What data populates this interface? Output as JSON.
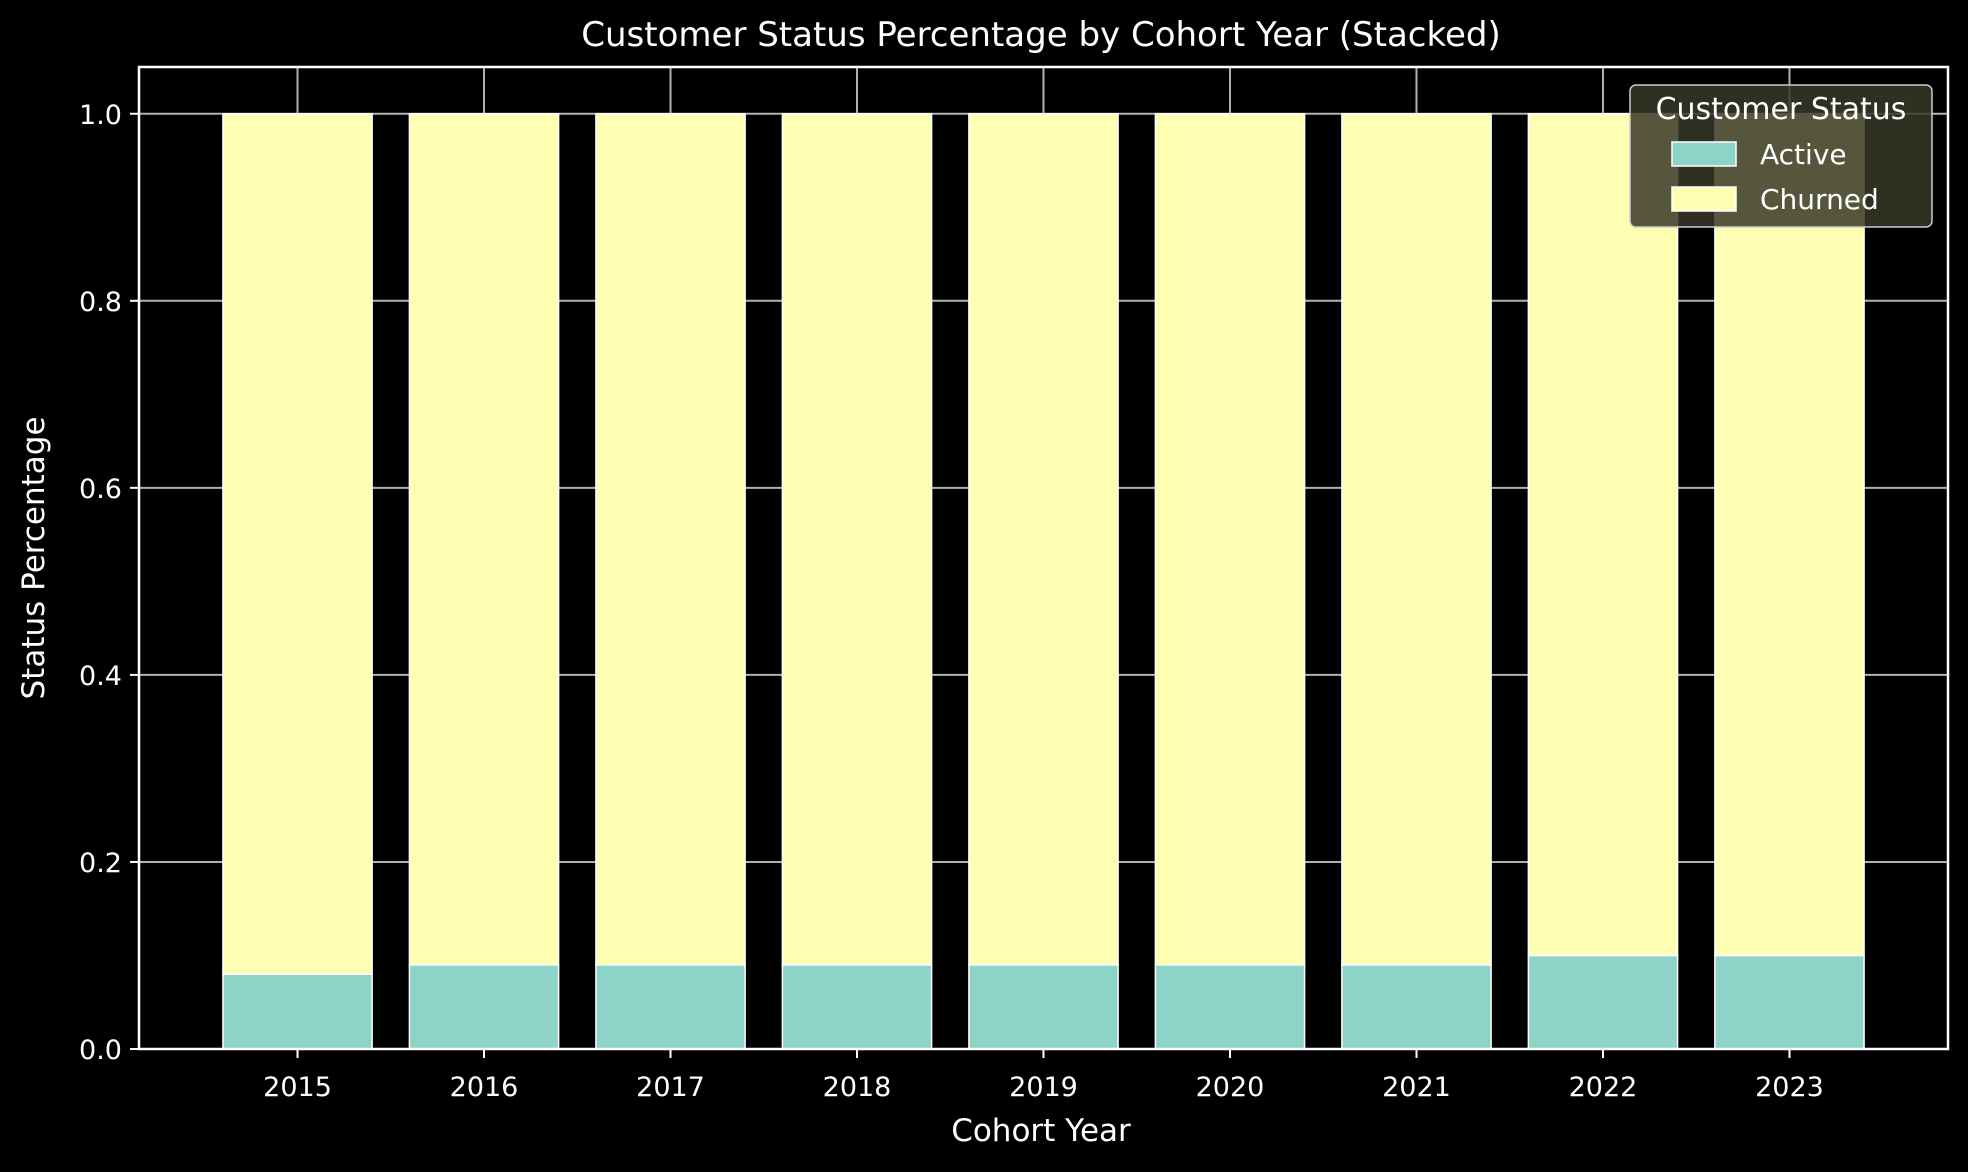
{
  "chart_data": {
    "type": "bar",
    "stacked": true,
    "title": "Customer Status Percentage by Cohort Year (Stacked)",
    "xlabel": "Cohort Year",
    "ylabel": "Status Percentage",
    "categories": [
      "2015",
      "2016",
      "2017",
      "2018",
      "2019",
      "2020",
      "2021",
      "2022",
      "2023"
    ],
    "series": [
      {
        "name": "Active",
        "color": "#8dd3c7",
        "values": [
          0.08,
          0.09,
          0.09,
          0.09,
          0.09,
          0.09,
          0.09,
          0.1,
          0.1
        ]
      },
      {
        "name": "Churned",
        "color": "#ffffb3",
        "values": [
          0.92,
          0.91,
          0.91,
          0.91,
          0.91,
          0.91,
          0.91,
          0.9,
          0.9
        ]
      }
    ],
    "ylim": [
      0,
      1.05
    ],
    "yticks": [
      0.0,
      0.2,
      0.4,
      0.6,
      0.8,
      1.0
    ],
    "ytick_labels": [
      "0.0",
      "0.2",
      "0.4",
      "0.6",
      "0.8",
      "1.0"
    ],
    "grid": true,
    "legend": {
      "title": "Customer Status",
      "position": "top-right"
    },
    "style": {
      "background": "#000000",
      "axis_color": "#ffffff",
      "grid_color": "#b0b0b0",
      "bar_edge_color": "#ffffff",
      "legend_bg": "#383828"
    }
  }
}
